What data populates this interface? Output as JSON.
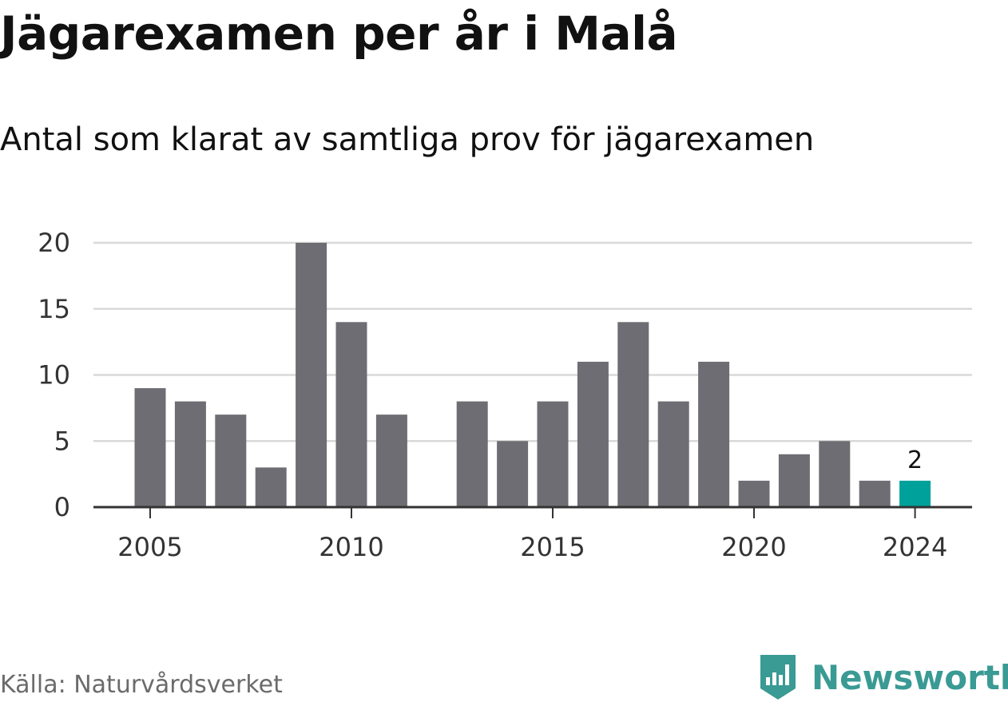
{
  "chart_data": {
    "type": "bar",
    "title": "Jägarexamen per år i Malå",
    "subtitle": "Antal som klarat av samtliga prov för jägarexamen",
    "categories": [
      2005,
      2006,
      2007,
      2008,
      2009,
      2010,
      2011,
      2012,
      2013,
      2014,
      2015,
      2016,
      2017,
      2018,
      2019,
      2020,
      2021,
      2022,
      2023,
      2024
    ],
    "values": [
      9,
      8,
      7,
      3,
      20,
      14,
      7,
      0,
      8,
      5,
      8,
      11,
      14,
      8,
      11,
      2,
      4,
      5,
      2,
      2
    ],
    "highlight_index": 19,
    "data_labels": [
      {
        "index": 19,
        "text": "2"
      }
    ],
    "ylim": [
      0,
      20
    ],
    "yticks": [
      0,
      5,
      10,
      15,
      20
    ],
    "xticks": [
      2005,
      2010,
      2015,
      2020,
      2024
    ],
    "grid": true,
    "colors": {
      "bar": "#6e6d73",
      "highlight": "#00a19a"
    }
  },
  "footer": {
    "source": "Källa: Naturvårdsverket",
    "brand": "Newsworthy",
    "brand_icon": "newsworthy-bar-chart-icon",
    "brand_color": "#3a9a94"
  }
}
